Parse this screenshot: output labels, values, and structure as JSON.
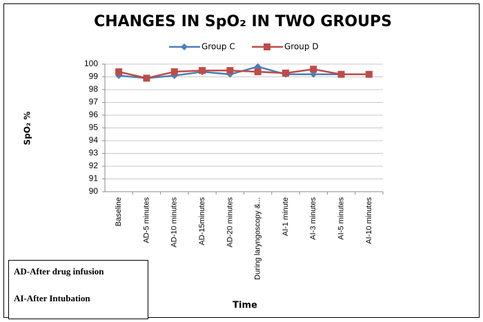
{
  "chart_data": {
    "type": "line",
    "title": "CHANGES IN SpO₂ IN TWO GROUPS",
    "y_label": "SpO₂ %",
    "x_label": "Time",
    "categories": [
      "Baseline",
      "AD-5 minutes",
      "AD-10 minutes",
      "AD-15minutes",
      "AD-20 minutes",
      "During laryngoscopy &...",
      "AI-1 minute",
      "AI-3 minutes",
      "AI-5 minutes",
      "AI-10 minutes"
    ],
    "series": [
      {
        "name": "Group C",
        "color": "#4a7ebb",
        "marker": "diamond",
        "values": [
          99.1,
          98.9,
          99.1,
          99.4,
          99.2,
          99.8,
          99.2,
          99.2,
          99.2,
          99.2
        ]
      },
      {
        "name": "Group D",
        "color": "#be4b48",
        "marker": "square",
        "values": [
          99.4,
          98.9,
          99.4,
          99.5,
          99.5,
          99.4,
          99.3,
          99.6,
          99.2,
          99.2
        ]
      }
    ],
    "ylim": [
      90,
      100
    ],
    "yticks": [
      90,
      91,
      92,
      93,
      94,
      95,
      96,
      97,
      98,
      99,
      100
    ],
    "grid": true,
    "legend": "top",
    "annotations": [
      "AD-After drug infusion",
      "AI-After Intubation"
    ]
  }
}
